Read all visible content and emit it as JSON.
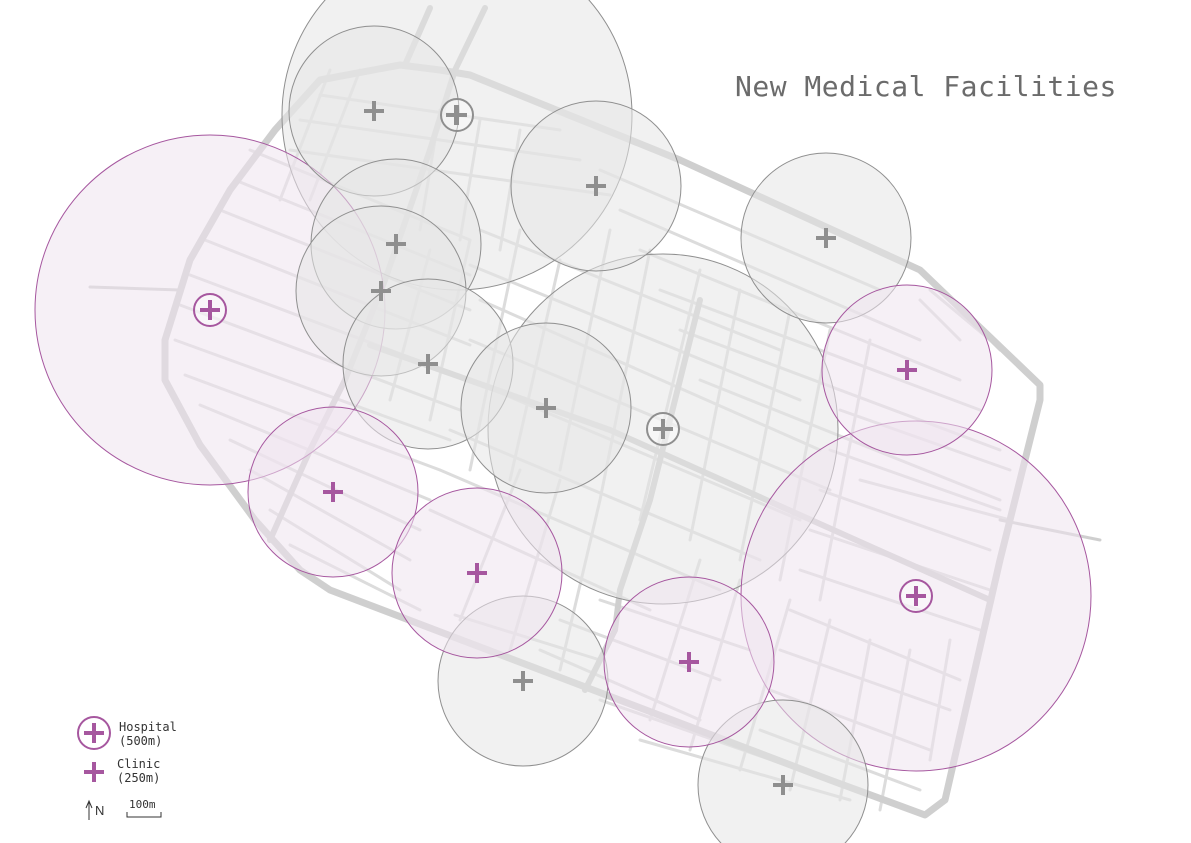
{
  "title": "New Medical Facilities",
  "colors": {
    "hospital": "#a6579f",
    "hospital_fill": "#efe3ee",
    "existing": "#8f8f8f",
    "existing_fill": "#e6e6e6",
    "street": "#dcdcdc",
    "arterial": "#cfcfcf"
  },
  "legend": {
    "hospital_label": "Hospital",
    "hospital_radius": "(500m)",
    "clinic_label": "Clinic",
    "clinic_radius": "(250m)",
    "north": "N",
    "scale": "100m"
  },
  "facilities": [
    {
      "type": "hospital",
      "status": "existing",
      "radius_m": 500
    },
    {
      "type": "hospital",
      "status": "existing",
      "radius_m": 500
    },
    {
      "type": "hospital",
      "status": "new",
      "radius_m": 500
    },
    {
      "type": "hospital",
      "status": "new",
      "radius_m": 500
    },
    {
      "type": "clinic",
      "status": "existing",
      "radius_m": 250
    },
    {
      "type": "clinic",
      "status": "existing",
      "radius_m": 250
    },
    {
      "type": "clinic",
      "status": "existing",
      "radius_m": 250
    },
    {
      "type": "clinic",
      "status": "existing",
      "radius_m": 250
    },
    {
      "type": "clinic",
      "status": "existing",
      "radius_m": 250
    },
    {
      "type": "clinic",
      "status": "existing",
      "radius_m": 250
    },
    {
      "type": "clinic",
      "status": "existing",
      "radius_m": 250
    },
    {
      "type": "clinic",
      "status": "existing",
      "radius_m": 250
    },
    {
      "type": "clinic",
      "status": "existing",
      "radius_m": 250
    },
    {
      "type": "clinic",
      "status": "existing",
      "radius_m": 250
    },
    {
      "type": "clinic",
      "status": "new",
      "radius_m": 250
    },
    {
      "type": "clinic",
      "status": "new",
      "radius_m": 250
    },
    {
      "type": "clinic",
      "status": "new",
      "radius_m": 250
    },
    {
      "type": "clinic",
      "status": "new",
      "radius_m": 250
    }
  ]
}
